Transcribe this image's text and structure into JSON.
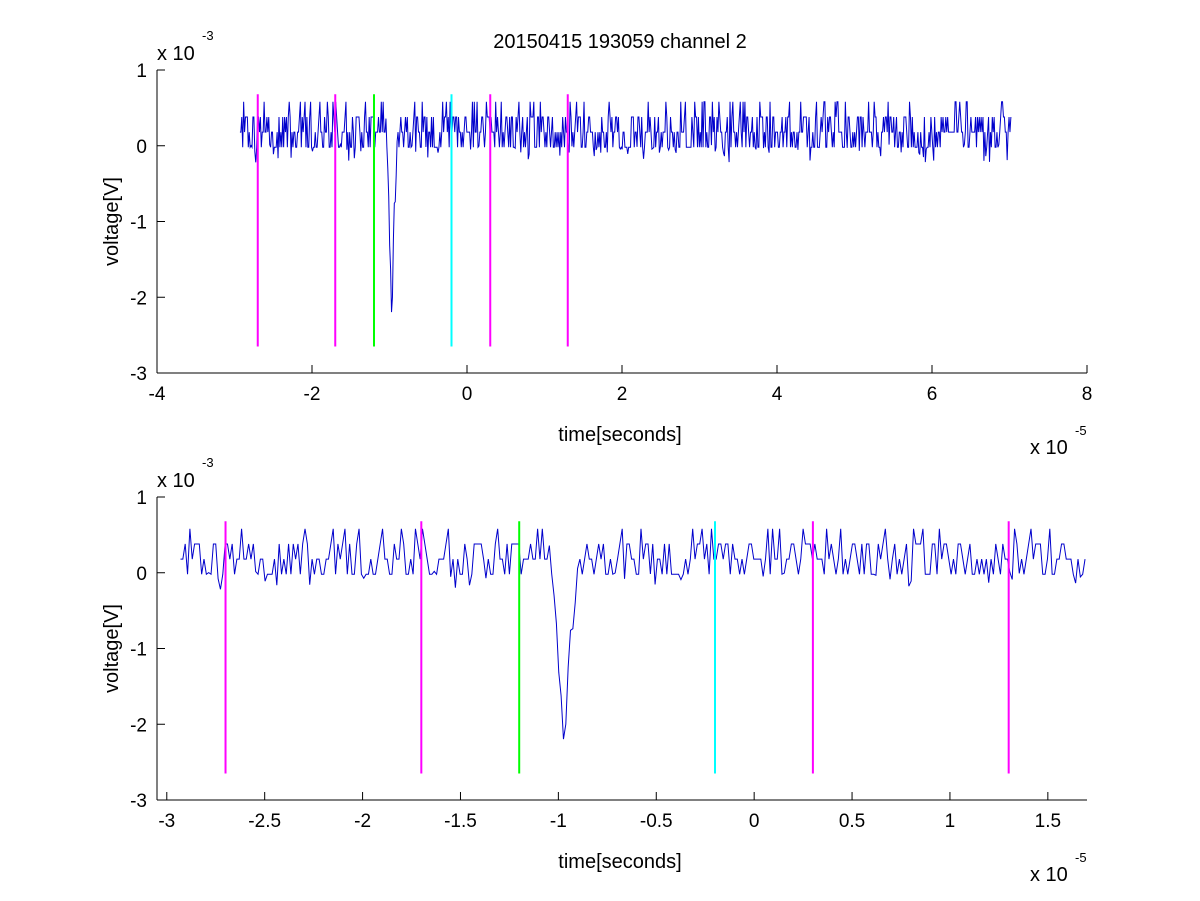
{
  "figure": {
    "title": "20150415 193059 channel 2"
  },
  "chart_data": [
    {
      "type": "line",
      "title": "20150415 193059 channel 2",
      "xlabel": "time[seconds]",
      "ylabel": "voltage[V]",
      "x_exponent_label": "x 10",
      "x_exponent": "-5",
      "y_exponent_label": "x 10",
      "y_exponent": "-3",
      "xlim": [
        -4,
        8
      ],
      "ylim": [
        -3,
        1
      ],
      "xticks": [
        "-4",
        "-2",
        "0",
        "2",
        "4",
        "6",
        "8"
      ],
      "yticks": [
        "1",
        "0",
        "-1",
        "-2",
        "-3"
      ],
      "grid": false,
      "series": [
        {
          "color": "#0000cc",
          "x_range": [
            -2.93,
            7.02
          ],
          "baseline": 0.18,
          "noise_step": 0.2,
          "spike": {
            "x": -0.97,
            "min": -2.4
          }
        }
      ],
      "markers": [
        {
          "x": -2.7,
          "color": "#ff00ff"
        },
        {
          "x": -1.7,
          "color": "#ff00ff"
        },
        {
          "x": -1.2,
          "color": "#00ff00"
        },
        {
          "x": -0.2,
          "color": "#00ffff"
        },
        {
          "x": 0.3,
          "color": "#ff00ff"
        },
        {
          "x": 1.3,
          "color": "#ff00ff"
        }
      ],
      "marker_span": [
        -2.65,
        0.68
      ]
    },
    {
      "type": "line",
      "title": "",
      "xlabel": "time[seconds]",
      "ylabel": "voltage[V]",
      "x_exponent_label": "x 10",
      "x_exponent": "-5",
      "y_exponent_label": "x 10",
      "y_exponent": "-3",
      "xlim": [
        -3.05,
        1.7
      ],
      "ylim": [
        -3,
        1
      ],
      "xticks": [
        "-3",
        "-2.5",
        "-2",
        "-1.5",
        "-1",
        "-0.5",
        "0",
        "0.5",
        "1",
        "1.5"
      ],
      "yticks": [
        "1",
        "0",
        "-1",
        "-2",
        "-3"
      ],
      "grid": false,
      "series": [
        {
          "color": "#0000cc",
          "x_range": [
            -2.93,
            1.7
          ],
          "baseline": 0.18,
          "noise_step": 0.2,
          "spike": {
            "x": -0.97,
            "min": -2.4
          }
        }
      ],
      "markers": [
        {
          "x": -2.7,
          "color": "#ff00ff"
        },
        {
          "x": -1.7,
          "color": "#ff00ff"
        },
        {
          "x": -1.2,
          "color": "#00ff00"
        },
        {
          "x": -0.2,
          "color": "#00ffff"
        },
        {
          "x": 0.3,
          "color": "#ff00ff"
        },
        {
          "x": 1.3,
          "color": "#ff00ff"
        }
      ],
      "marker_span": [
        -2.65,
        0.68
      ]
    }
  ]
}
